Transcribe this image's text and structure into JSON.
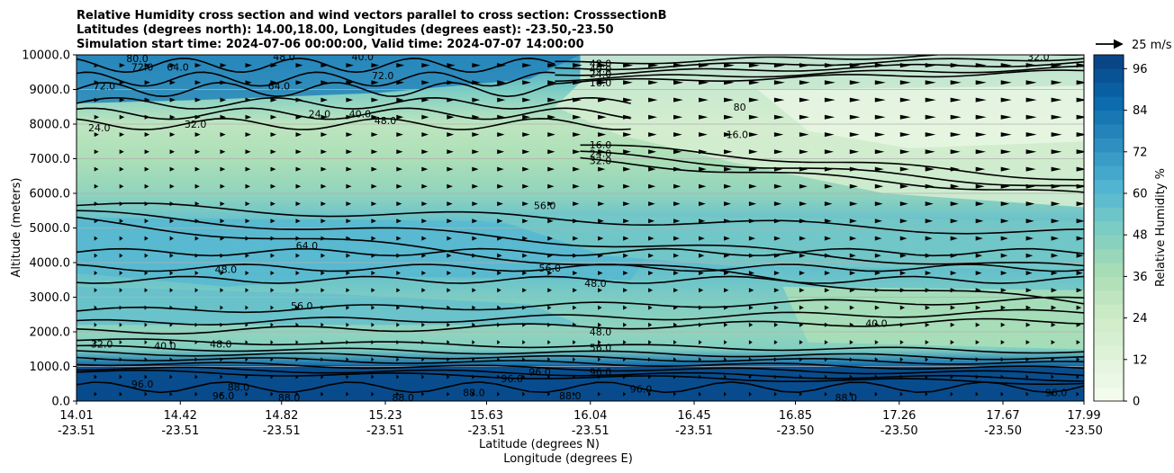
{
  "chart_data": {
    "type": "contour",
    "title_lines": [
      "Relative Humidity cross section and wind vectors parallel to cross section: CrosssectionB",
      "Latitudes (degrees north): 14.00,18.00, Longitudes (degrees east): -23.50,-23.50",
      "Simulation start time: 2024-07-06 00:00:00, Valid time: 2024-07-07 14:00:00"
    ],
    "ylabel": "Altitude (meters)",
    "xlabel_lines": [
      "Latitude (degrees N)",
      "Longitude (degrees E)"
    ],
    "ylim": [
      0,
      10000
    ],
    "y_ticks": [
      "0.0",
      "1000.0",
      "2000.0",
      "3000.0",
      "4000.0",
      "5000.0",
      "6000.0",
      "7000.0",
      "8000.0",
      "9000.0",
      "10000.0"
    ],
    "x_ticks": [
      {
        "lat": "14.01",
        "lon": "-23.51"
      },
      {
        "lat": "14.42",
        "lon": "-23.51"
      },
      {
        "lat": "14.82",
        "lon": "-23.51"
      },
      {
        "lat": "15.23",
        "lon": "-23.51"
      },
      {
        "lat": "15.63",
        "lon": "-23.51"
      },
      {
        "lat": "16.04",
        "lon": "-23.51"
      },
      {
        "lat": "16.45",
        "lon": "-23.51"
      },
      {
        "lat": "16.85",
        "lon": "-23.50"
      },
      {
        "lat": "17.26",
        "lon": "-23.50"
      },
      {
        "lat": "17.67",
        "lon": "-23.50"
      },
      {
        "lat": "17.99",
        "lon": "-23.50"
      }
    ],
    "grid": "horizontal",
    "colorbar": {
      "label": "Relative Humidity %",
      "ticks": [
        "0",
        "12",
        "24",
        "36",
        "48",
        "60",
        "72",
        "84",
        "96"
      ],
      "range": [
        0,
        100
      ],
      "colormap": "GnBu"
    },
    "quiver_key": "25 m/s",
    "humidity_layers": [
      {
        "altitude": 0,
        "rh": 96
      },
      {
        "altitude": 1000,
        "rh": 88
      },
      {
        "altitude": 1500,
        "rh": 48
      },
      {
        "altitude": 2000,
        "rh": 44
      },
      {
        "altitude": 3000,
        "rh": 50
      },
      {
        "altitude": 4000,
        "rh": 58
      },
      {
        "altitude": 5000,
        "rh": 58
      },
      {
        "altitude": 6000,
        "rh": 44
      },
      {
        "altitude": 7000,
        "rh": 36
      },
      {
        "altitude": 8000,
        "rh": 30
      },
      {
        "altitude": 9000,
        "rh": 50
      },
      {
        "altitude": 10000,
        "rh": 70
      }
    ],
    "contour_labels": [
      {
        "text": "16.0",
        "lat": 16.08,
        "alt": 9200
      },
      {
        "text": "24.0",
        "lat": 16.08,
        "alt": 9450
      },
      {
        "text": "40.0",
        "lat": 16.08,
        "alt": 9600
      },
      {
        "text": "48.0",
        "lat": 16.08,
        "alt": 9750
      },
      {
        "text": "16.0",
        "lat": 16.08,
        "alt": 7400
      },
      {
        "text": "24.0",
        "lat": 16.08,
        "alt": 7150
      },
      {
        "text": "32.0",
        "lat": 16.08,
        "alt": 6950
      },
      {
        "text": "56.0",
        "lat": 15.86,
        "alt": 5650
      },
      {
        "text": "56.0",
        "lat": 15.88,
        "alt": 3850
      },
      {
        "text": "48.0",
        "lat": 16.08,
        "alt": 2000
      },
      {
        "text": "56.0",
        "lat": 16.08,
        "alt": 1550
      },
      {
        "text": "96.0",
        "lat": 16.08,
        "alt": 850
      },
      {
        "text": "88.0",
        "lat": 15.96,
        "alt": 150
      },
      {
        "text": "88.0",
        "lat": 14.65,
        "alt": 400
      },
      {
        "text": "64.0",
        "lat": 14.92,
        "alt": 4500
      },
      {
        "text": "48.0",
        "lat": 14.6,
        "alt": 3800
      },
      {
        "text": "56.0",
        "lat": 14.9,
        "alt": 2750
      },
      {
        "text": "32.0",
        "lat": 14.11,
        "alt": 1650
      },
      {
        "text": "40.0",
        "lat": 14.36,
        "alt": 1600
      },
      {
        "text": "48.0",
        "lat": 14.58,
        "alt": 1650
      },
      {
        "text": "24.0",
        "lat": 14.1,
        "alt": 7900
      },
      {
        "text": "32.0",
        "lat": 14.48,
        "alt": 8000
      },
      {
        "text": "24.0",
        "lat": 14.97,
        "alt": 8300
      },
      {
        "text": "40.0",
        "lat": 15.13,
        "alt": 8300
      },
      {
        "text": "48.0",
        "lat": 15.23,
        "alt": 8100
      },
      {
        "text": "64.0",
        "lat": 14.41,
        "alt": 9650
      },
      {
        "text": "72.0",
        "lat": 14.27,
        "alt": 9650
      },
      {
        "text": "80.0",
        "lat": 14.25,
        "alt": 9900
      },
      {
        "text": "72.0",
        "lat": 14.12,
        "alt": 9100
      },
      {
        "text": "64.0",
        "lat": 14.81,
        "alt": 9100
      },
      {
        "text": "72.0",
        "lat": 15.22,
        "alt": 9400
      },
      {
        "text": "48.0",
        "lat": 14.83,
        "alt": 9950
      },
      {
        "text": "40.0",
        "lat": 15.14,
        "alt": 9950
      },
      {
        "text": "32.0",
        "lat": 17.81,
        "alt": 9950
      },
      {
        "text": "80",
        "lat": 16.63,
        "alt": 8500
      },
      {
        "text": "16.0",
        "lat": 16.62,
        "alt": 7700
      },
      {
        "text": "48.0",
        "lat": 16.06,
        "alt": 3400
      },
      {
        "text": "40.0",
        "lat": 17.17,
        "alt": 2250
      },
      {
        "text": "96.0",
        "lat": 15.84,
        "alt": 850
      },
      {
        "text": "96.0",
        "lat": 15.73,
        "alt": 650
      },
      {
        "text": "96.0",
        "lat": 16.24,
        "alt": 350
      },
      {
        "text": "96.0",
        "lat": 17.88,
        "alt": 250
      },
      {
        "text": "88.0",
        "lat": 17.05,
        "alt": 100
      },
      {
        "text": "88.0",
        "lat": 15.58,
        "alt": 250
      },
      {
        "text": "96.0",
        "lat": 14.59,
        "alt": 150
      },
      {
        "text": "88.0",
        "lat": 14.85,
        "alt": 100
      },
      {
        "text": "88.0",
        "lat": 15.3,
        "alt": 100
      },
      {
        "text": "96.0",
        "lat": 14.27,
        "alt": 500
      }
    ],
    "wind": {
      "direction": "eastward",
      "max_speed": 25
    }
  },
  "colors": {
    "low_rh": "#f7fcf0",
    "mid_rh": "#7bccc4",
    "high_rh": "#084081",
    "contour": "#000000",
    "grid": "#b0b0b0"
  }
}
